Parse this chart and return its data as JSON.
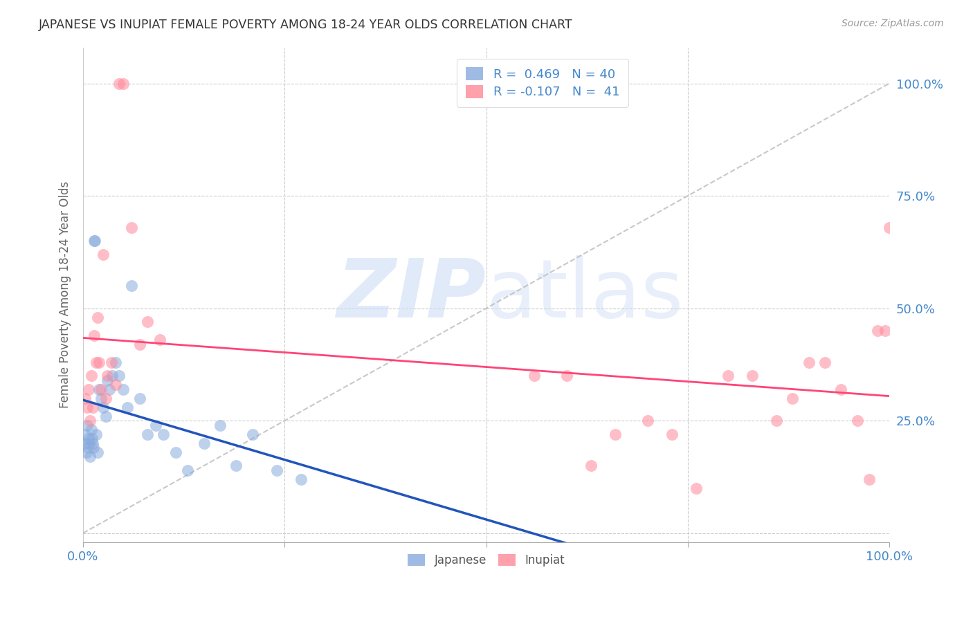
{
  "title": "JAPANESE VS INUPIAT FEMALE POVERTY AMONG 18-24 YEAR OLDS CORRELATION CHART",
  "source": "Source: ZipAtlas.com",
  "ylabel": "Female Poverty Among 18-24 Year Olds",
  "japanese_color": "#88AADD",
  "inupiat_color": "#FF8899",
  "japanese_line_color": "#2255BB",
  "inupiat_line_color": "#FF4477",
  "ref_line_color": "#BBBBBB",
  "japanese_R": 0.469,
  "japanese_N": 40,
  "inupiat_R": -0.107,
  "inupiat_N": 41,
  "watermark_zip": "ZIP",
  "watermark_atlas": "atlas",
  "grid_color": "#CCCCCC",
  "tick_color": "#4488CC",
  "label_color": "#666666",
  "japanese_x": [
    0.002,
    0.003,
    0.004,
    0.005,
    0.006,
    0.007,
    0.008,
    0.009,
    0.01,
    0.011,
    0.012,
    0.013,
    0.014,
    0.015,
    0.016,
    0.018,
    0.02,
    0.022,
    0.025,
    0.028,
    0.03,
    0.033,
    0.036,
    0.04,
    0.045,
    0.05,
    0.055,
    0.06,
    0.07,
    0.08,
    0.09,
    0.1,
    0.115,
    0.13,
    0.15,
    0.17,
    0.19,
    0.21,
    0.24,
    0.27
  ],
  "japanese_y": [
    0.2,
    0.22,
    0.18,
    0.24,
    0.19,
    0.21,
    0.2,
    0.17,
    0.23,
    0.21,
    0.2,
    0.19,
    0.65,
    0.65,
    0.22,
    0.18,
    0.32,
    0.3,
    0.28,
    0.26,
    0.34,
    0.32,
    0.35,
    0.38,
    0.35,
    0.32,
    0.28,
    0.55,
    0.3,
    0.22,
    0.24,
    0.22,
    0.18,
    0.14,
    0.2,
    0.24,
    0.15,
    0.22,
    0.14,
    0.12
  ],
  "inupiat_x": [
    0.003,
    0.005,
    0.007,
    0.009,
    0.01,
    0.012,
    0.014,
    0.016,
    0.018,
    0.02,
    0.022,
    0.025,
    0.028,
    0.03,
    0.035,
    0.04,
    0.045,
    0.05,
    0.06,
    0.07,
    0.08,
    0.095,
    0.56,
    0.6,
    0.63,
    0.66,
    0.7,
    0.73,
    0.76,
    0.8,
    0.83,
    0.86,
    0.88,
    0.9,
    0.92,
    0.94,
    0.96,
    0.975,
    0.985,
    0.995,
    1.0
  ],
  "inupiat_y": [
    0.3,
    0.28,
    0.32,
    0.25,
    0.35,
    0.28,
    0.44,
    0.38,
    0.48,
    0.38,
    0.32,
    0.62,
    0.3,
    0.35,
    0.38,
    0.33,
    1.0,
    1.0,
    0.68,
    0.42,
    0.47,
    0.43,
    0.35,
    0.35,
    0.15,
    0.22,
    0.25,
    0.22,
    0.1,
    0.35,
    0.35,
    0.25,
    0.3,
    0.38,
    0.38,
    0.32,
    0.25,
    0.12,
    0.45,
    0.45,
    0.68
  ],
  "xlim": [
    0.0,
    1.0
  ],
  "ylim": [
    -0.02,
    1.08
  ],
  "xticks": [
    0.0,
    0.25,
    0.5,
    0.75,
    1.0
  ],
  "yticks": [
    0.0,
    0.25,
    0.5,
    0.75,
    1.0
  ]
}
